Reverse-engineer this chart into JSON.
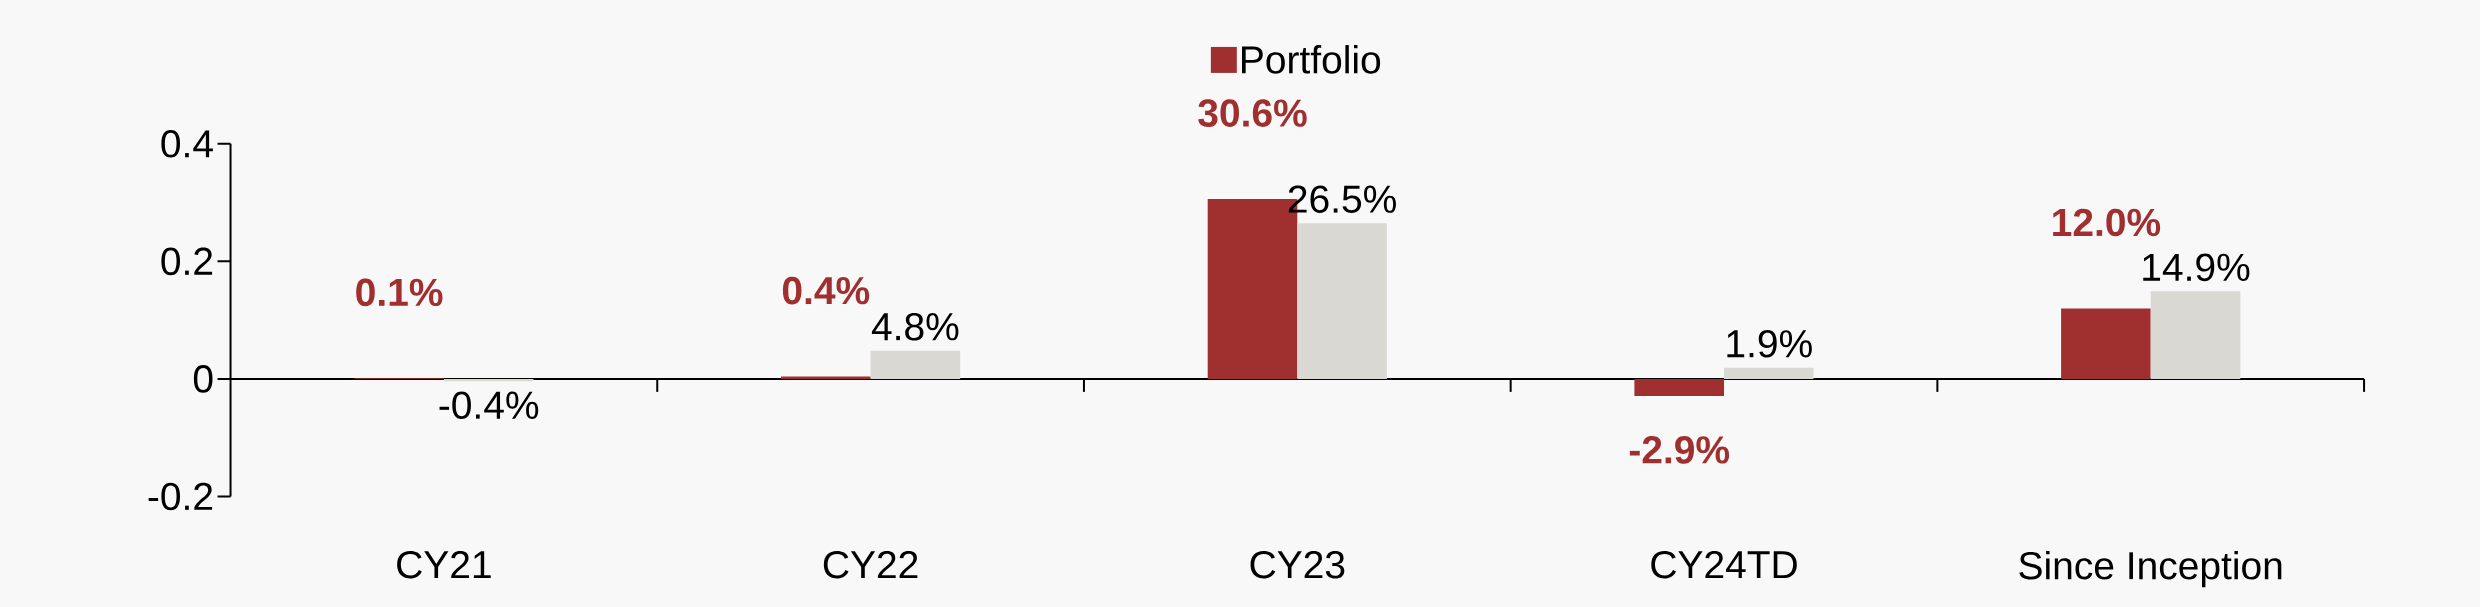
{
  "chart_data": {
    "type": "bar",
    "categories": [
      "CY21",
      "CY22",
      "CY23",
      "CY24TD",
      "Since Inception"
    ],
    "series": [
      {
        "name": "Portfolio",
        "color": "#a03030",
        "values": [
          0.001,
          0.004,
          0.306,
          -0.029,
          0.12
        ],
        "value_labels": [
          "0.1%",
          "0.4%",
          "30.6%",
          "-2.9%",
          "12.0%"
        ]
      },
      {
        "color": "#d9d8d3",
        "values": [
          -0.004,
          0.048,
          0.265,
          0.019,
          0.149
        ],
        "value_labels": [
          "-0.4%",
          "4.8%",
          "26.5%",
          "1.9%",
          "14.9%"
        ]
      }
    ],
    "ylim": [
      -0.2,
      0.4
    ],
    "yticks": [
      -0.2,
      0,
      0.2,
      0.4
    ],
    "legend": "top"
  }
}
